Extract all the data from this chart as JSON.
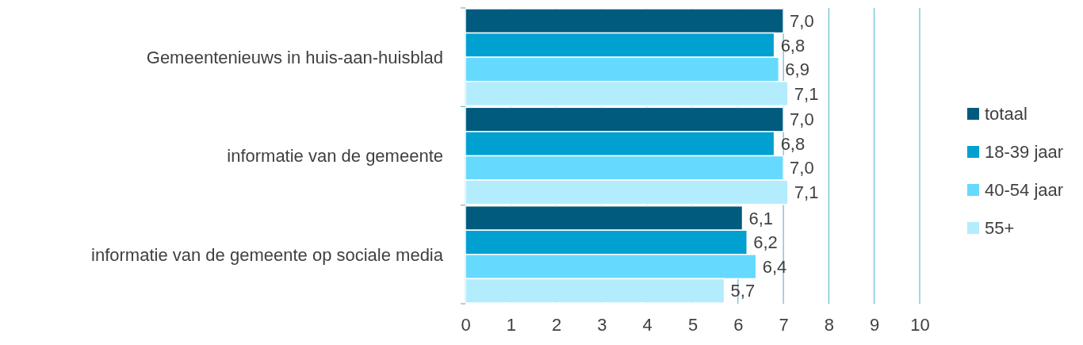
{
  "chart_data": {
    "type": "bar",
    "orientation": "horizontal",
    "categories": [
      "Gemeentenieuws in huis-aan-huisblad",
      "informatie van de gemeente",
      "informatie van de gemeente op sociale media"
    ],
    "series": [
      {
        "name": "totaal",
        "color": "#005b7f",
        "values": [
          7.0,
          7.0,
          6.1
        ],
        "value_labels": [
          "7,0",
          "7,0",
          "6,1"
        ]
      },
      {
        "name": "18-39 jaar",
        "color": "#00a0d0",
        "values": [
          6.8,
          6.8,
          6.2
        ],
        "value_labels": [
          "6,8",
          "6,8",
          "6,2"
        ]
      },
      {
        "name": "40-54 jaar",
        "color": "#66d9ff",
        "values": [
          6.9,
          7.0,
          6.4
        ],
        "value_labels": [
          "6,9",
          "7,0",
          "6,4"
        ]
      },
      {
        "name": "55+",
        "color": "#b3ecfd",
        "values": [
          7.1,
          7.1,
          5.7
        ],
        "value_labels": [
          "7,1",
          "7,1",
          "5,7"
        ]
      }
    ],
    "xlim": [
      0,
      10
    ],
    "xticks": [
      0,
      1,
      2,
      3,
      4,
      5,
      6,
      7,
      8,
      9,
      10
    ],
    "grid": "x",
    "legend": "right"
  }
}
